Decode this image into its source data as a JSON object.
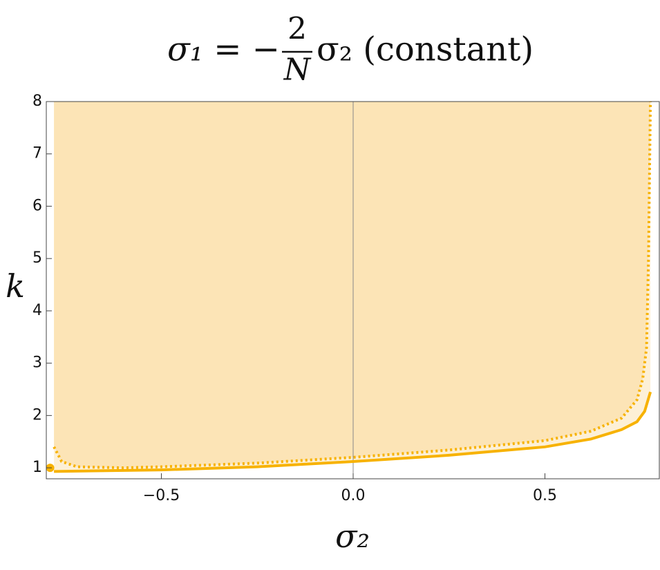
{
  "chart_data": {
    "type": "line",
    "title": {
      "lhs": "σ₁ = −",
      "numerator": "2",
      "denominator": "N",
      "rhs": "σ₂ (constant)"
    },
    "x_label": "σ₂",
    "y_label": "k",
    "xlim": [
      -0.8,
      0.8
    ],
    "ylim": [
      0.79,
      8
    ],
    "xticks": [
      {
        "value": -0.5,
        "label": "−0.5"
      },
      {
        "value": 0,
        "label": "0.0"
      },
      {
        "value": 0.5,
        "label": "0.5"
      }
    ],
    "yticks": [
      1,
      2,
      3,
      4,
      5,
      6,
      7,
      8
    ],
    "series": [
      {
        "style": "solid",
        "color": "#f7b200",
        "fill": "#fdf0d6",
        "x": [
          -0.78,
          -0.5,
          -0.25,
          0,
          0.25,
          0.5,
          0.62,
          0.7,
          0.74,
          0.76,
          0.775
        ],
        "values": [
          0.93,
          0.96,
          1.02,
          1.12,
          1.24,
          1.4,
          1.55,
          1.73,
          1.88,
          2.08,
          2.45
        ]
      },
      {
        "style": "dotted",
        "color": "#f7b200",
        "fill": "#fce4b6",
        "x": [
          -0.78,
          -0.76,
          -0.72,
          -0.6,
          -0.5,
          -0.25,
          0,
          0.25,
          0.5,
          0.62,
          0.7,
          0.74,
          0.755,
          0.765,
          0.77,
          0.775
        ],
        "values": [
          1.4,
          1.12,
          1.02,
          1.0,
          1.02,
          1.09,
          1.2,
          1.34,
          1.52,
          1.7,
          1.95,
          2.3,
          2.7,
          3.3,
          5.0,
          8.0
        ]
      }
    ],
    "marker": {
      "x": -0.79,
      "y": 1.0,
      "color": "#f7b200"
    }
  }
}
